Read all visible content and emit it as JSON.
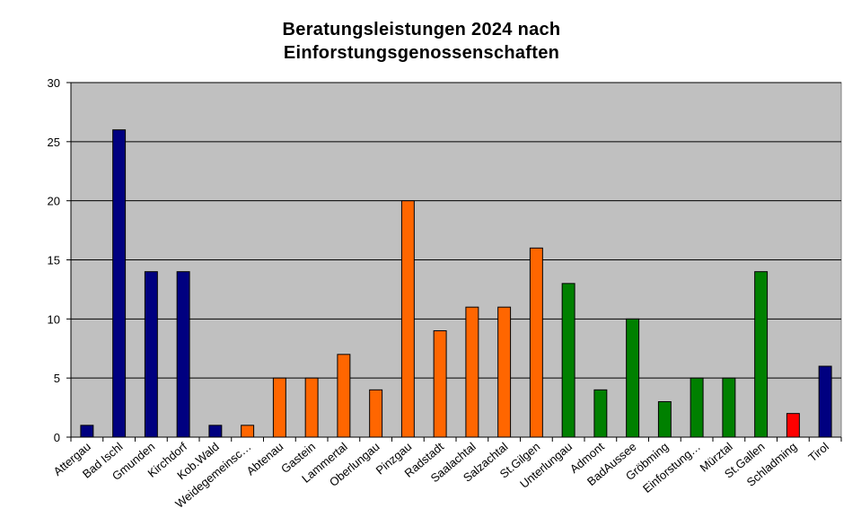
{
  "chart_data": {
    "type": "bar",
    "title_lines": [
      "Beratungsleistungen 2024 nach",
      "Einforstungsgenossenschaften"
    ],
    "xlabel": "",
    "ylabel": "",
    "ylim": [
      0,
      30
    ],
    "yticks": [
      0,
      5,
      10,
      15,
      20,
      25,
      30
    ],
    "grid": true,
    "legend": "none",
    "plot_background": "#c0c0c0",
    "categories": [
      "Attergau",
      "Bad Ischl",
      "Gmunden",
      "Kirchdorf",
      "Kob.Wald",
      "Weidegemeinsc…",
      "Abtenau",
      "Gastein",
      "Lammertal",
      "Oberlungau",
      "Pinzgau",
      "Radstadt",
      "Saalachtal",
      "Salzachtal",
      "St.Gilgen",
      "Unterlungau",
      "Admont",
      "BadAussee",
      "Gröbming",
      "Einforstung…",
      "Mürztal",
      "St.Gallen",
      "Schladming",
      "Tirol"
    ],
    "values": [
      1,
      26,
      14,
      14,
      1,
      1,
      5,
      5,
      7,
      4,
      20,
      9,
      11,
      11,
      16,
      13,
      4,
      10,
      3,
      5,
      5,
      14,
      2,
      6
    ],
    "colors": [
      "#000080",
      "#000080",
      "#000080",
      "#000080",
      "#000080",
      "#ff6600",
      "#ff6600",
      "#ff6600",
      "#ff6600",
      "#ff6600",
      "#ff6600",
      "#ff6600",
      "#ff6600",
      "#ff6600",
      "#ff6600",
      "#008000",
      "#008000",
      "#008000",
      "#008000",
      "#008000",
      "#008000",
      "#008000",
      "#ff0000",
      "#000080"
    ]
  }
}
